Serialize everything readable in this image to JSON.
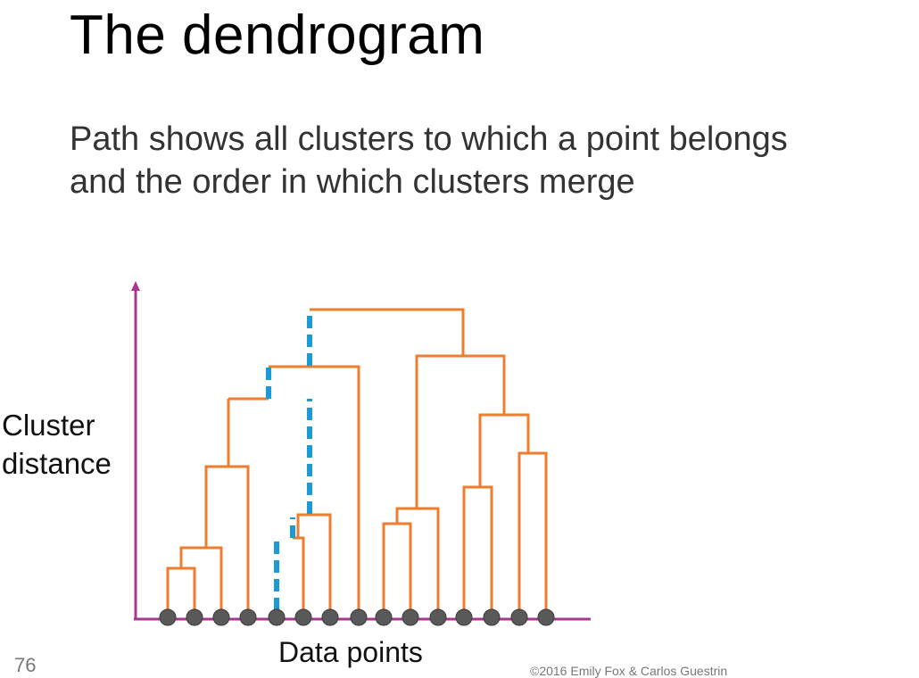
{
  "slide": {
    "title": "The dendrogram",
    "subtitle_lines": [
      "Path shows all clusters to which a point belongs",
      "and the order in which clusters merge"
    ],
    "page_number": "76",
    "copyright": "©2016 Emily Fox & Carlos Guestrin"
  },
  "diagram": {
    "y_axis_label_lines": [
      "Cluster",
      "distance"
    ],
    "x_axis_label": "Data points",
    "colors": {
      "axis": "#a8378f",
      "branch": "#ee7d2d",
      "highlight_path": "#1c9ad6",
      "point": "#595959"
    },
    "leaf_count": 15,
    "highlighted_leaf": 5
  }
}
